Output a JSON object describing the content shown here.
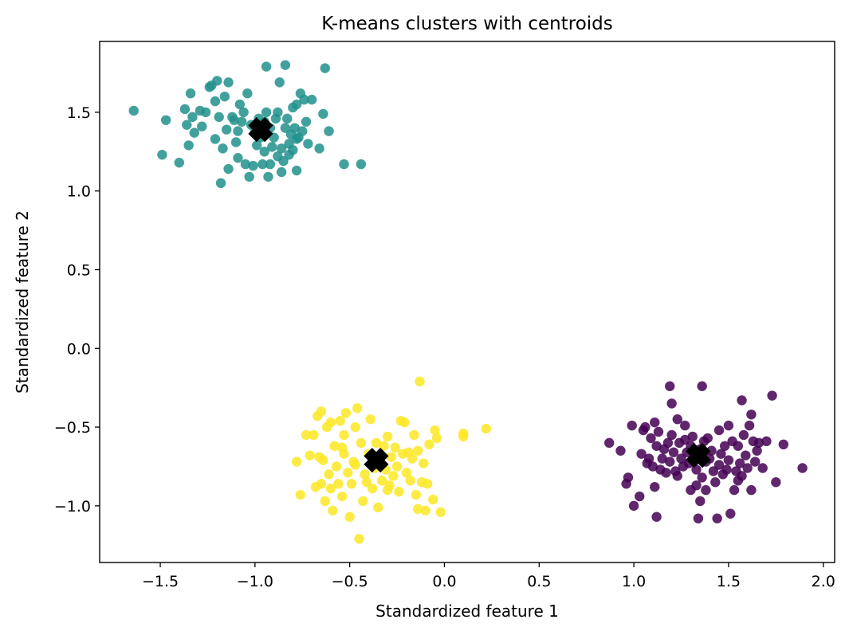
{
  "chart_data": {
    "type": "scatter",
    "title": "K-means clusters with centroids",
    "xlabel": "Standardized feature 1",
    "ylabel": "Standardized feature 2",
    "xlim": [
      -1.82,
      2.06
    ],
    "ylim": [
      -1.36,
      1.95
    ],
    "xticks": [
      -1.5,
      -1.0,
      -0.5,
      0.0,
      0.5,
      1.0,
      1.5,
      2.0
    ],
    "xtick_labels": [
      "−1.5",
      "−1.0",
      "−0.5",
      "0.0",
      "0.5",
      "1.0",
      "1.5",
      "2.0"
    ],
    "yticks": [
      -1.0,
      -0.5,
      0.0,
      0.5,
      1.0,
      1.5
    ],
    "ytick_labels": [
      "−1.0",
      "−0.5",
      "0.0",
      "0.5",
      "1.0",
      "1.5"
    ],
    "grid": false,
    "legend": "none",
    "point_alpha": 0.85,
    "clusters": [
      {
        "color": "#440154",
        "centroid": [
          1.34,
          -0.68
        ],
        "points": [
          [
            0.87,
            -0.6
          ],
          [
            0.93,
            -0.65
          ],
          [
            0.96,
            -0.86
          ],
          [
            0.97,
            -0.82
          ],
          [
            0.99,
            -0.49
          ],
          [
            1.0,
            -1.0
          ],
          [
            1.03,
            -0.94
          ],
          [
            1.04,
            -0.67
          ],
          [
            1.05,
            -0.52
          ],
          [
            1.06,
            -0.5
          ],
          [
            1.07,
            -0.73
          ],
          [
            1.08,
            -0.7
          ],
          [
            1.09,
            -0.57
          ],
          [
            1.1,
            -0.75
          ],
          [
            1.11,
            -0.88
          ],
          [
            1.11,
            -0.47
          ],
          [
            1.12,
            -1.07
          ],
          [
            1.12,
            -0.62
          ],
          [
            1.13,
            -0.53
          ],
          [
            1.14,
            -0.77
          ],
          [
            1.15,
            -0.7
          ],
          [
            1.16,
            -0.64
          ],
          [
            1.17,
            -0.79
          ],
          [
            1.18,
            -0.6
          ],
          [
            1.19,
            -0.72
          ],
          [
            1.19,
            -0.24
          ],
          [
            1.2,
            -0.35
          ],
          [
            1.2,
            -0.55
          ],
          [
            1.21,
            -0.66
          ],
          [
            1.22,
            -0.78
          ],
          [
            1.23,
            -0.81
          ],
          [
            1.23,
            -0.45
          ],
          [
            1.24,
            -0.6
          ],
          [
            1.25,
            -0.7
          ],
          [
            1.26,
            -0.75
          ],
          [
            1.27,
            -0.58
          ],
          [
            1.28,
            -0.66
          ],
          [
            1.29,
            -0.73
          ],
          [
            1.3,
            -0.9
          ],
          [
            1.3,
            -0.62
          ],
          [
            1.31,
            -0.56
          ],
          [
            1.32,
            -0.68
          ],
          [
            1.33,
            -0.77
          ],
          [
            1.33,
            -0.87
          ],
          [
            1.34,
            -1.08
          ],
          [
            1.35,
            -0.64
          ],
          [
            1.35,
            -0.97
          ],
          [
            1.36,
            -0.24
          ],
          [
            1.36,
            -0.82
          ],
          [
            1.37,
            -0.59
          ],
          [
            1.38,
            -0.72
          ],
          [
            1.38,
            -0.9
          ],
          [
            1.39,
            -0.57
          ],
          [
            1.4,
            -0.7
          ],
          [
            1.41,
            -0.65
          ],
          [
            1.42,
            -0.78
          ],
          [
            1.43,
            -0.85
          ],
          [
            1.44,
            -1.08
          ],
          [
            1.45,
            -0.74
          ],
          [
            1.46,
            -0.67
          ],
          [
            1.47,
            -0.8
          ],
          [
            1.48,
            -0.62
          ],
          [
            1.49,
            -0.77
          ],
          [
            1.5,
            -0.49
          ],
          [
            1.5,
            -0.71
          ],
          [
            1.51,
            -1.05
          ],
          [
            1.52,
            -0.59
          ],
          [
            1.53,
            -0.9
          ],
          [
            1.54,
            -0.78
          ],
          [
            1.55,
            -0.62
          ],
          [
            1.56,
            -0.73
          ],
          [
            1.57,
            -0.81
          ],
          [
            1.57,
            -0.33
          ],
          [
            1.58,
            -0.55
          ],
          [
            1.59,
            -0.68
          ],
          [
            1.6,
            -0.76
          ],
          [
            1.61,
            -0.49
          ],
          [
            1.62,
            -0.42
          ],
          [
            1.62,
            -0.9
          ],
          [
            1.63,
            -0.59
          ],
          [
            1.64,
            -0.72
          ],
          [
            1.65,
            -0.65
          ],
          [
            1.66,
            -0.6
          ],
          [
            1.68,
            -0.76
          ],
          [
            1.7,
            -0.59
          ],
          [
            1.73,
            -0.3
          ],
          [
            1.75,
            -0.85
          ],
          [
            1.79,
            -0.61
          ],
          [
            1.89,
            -0.76
          ],
          [
            1.55,
            -0.84
          ],
          [
            1.45,
            -0.52
          ],
          [
            1.27,
            -0.49
          ]
        ]
      },
      {
        "color": "#21918c",
        "centroid": [
          -0.97,
          1.39
        ],
        "points": [
          [
            -1.64,
            1.51
          ],
          [
            -1.49,
            1.23
          ],
          [
            -1.47,
            1.45
          ],
          [
            -1.4,
            1.18
          ],
          [
            -1.37,
            1.52
          ],
          [
            -1.36,
            1.42
          ],
          [
            -1.35,
            1.29
          ],
          [
            -1.34,
            1.62
          ],
          [
            -1.33,
            1.47
          ],
          [
            -1.32,
            1.37
          ],
          [
            -1.29,
            1.51
          ],
          [
            -1.28,
            1.41
          ],
          [
            -1.26,
            1.5
          ],
          [
            -1.24,
            1.66
          ],
          [
            -1.23,
            1.67
          ],
          [
            -1.21,
            1.33
          ],
          [
            -1.21,
            1.57
          ],
          [
            -1.2,
            1.7
          ],
          [
            -1.19,
            1.47
          ],
          [
            -1.18,
            1.05
          ],
          [
            -1.17,
            1.27
          ],
          [
            -1.16,
            1.6
          ],
          [
            -1.15,
            1.39
          ],
          [
            -1.14,
            1.69
          ],
          [
            -1.14,
            1.14
          ],
          [
            -1.12,
            1.47
          ],
          [
            -1.11,
            1.45
          ],
          [
            -1.1,
            1.31
          ],
          [
            -1.09,
            1.21
          ],
          [
            -1.08,
            1.55
          ],
          [
            -1.07,
            1.44
          ],
          [
            -1.06,
            1.5
          ],
          [
            -1.05,
            1.17
          ],
          [
            -1.04,
            1.62
          ],
          [
            -1.03,
            1.09
          ],
          [
            -1.02,
            1.42
          ],
          [
            -1.01,
            1.16
          ],
          [
            -1.0,
            1.38
          ],
          [
            -0.99,
            1.29
          ],
          [
            -0.98,
            1.46
          ],
          [
            -0.97,
            1.34
          ],
          [
            -0.96,
            1.17
          ],
          [
            -0.95,
            1.25
          ],
          [
            -0.94,
            1.5
          ],
          [
            -0.94,
            1.79
          ],
          [
            -0.93,
            1.09
          ],
          [
            -0.92,
            1.4
          ],
          [
            -0.91,
            1.28
          ],
          [
            -0.9,
            1.34
          ],
          [
            -0.89,
            1.46
          ],
          [
            -0.88,
            1.22
          ],
          [
            -0.88,
            1.5
          ],
          [
            -0.87,
            1.69
          ],
          [
            -0.86,
            1.27
          ],
          [
            -0.85,
            1.19
          ],
          [
            -0.84,
            1.4
          ],
          [
            -0.84,
            1.8
          ],
          [
            -0.83,
            1.46
          ],
          [
            -0.82,
            1.23
          ],
          [
            -0.81,
            1.36
          ],
          [
            -0.8,
            1.53
          ],
          [
            -0.8,
            1.26
          ],
          [
            -0.79,
            1.4
          ],
          [
            -0.78,
            1.13
          ],
          [
            -0.78,
            1.55
          ],
          [
            -0.77,
            1.34
          ],
          [
            -0.76,
            1.62
          ],
          [
            -0.75,
            1.38
          ],
          [
            -0.74,
            1.58
          ],
          [
            -0.73,
            1.44
          ],
          [
            -0.72,
            1.3
          ],
          [
            -0.7,
            1.58
          ],
          [
            -0.66,
            1.27
          ],
          [
            -0.64,
            1.49
          ],
          [
            -0.63,
            1.78
          ],
          [
            -0.61,
            1.38
          ],
          [
            -0.53,
            1.17
          ],
          [
            -0.44,
            1.17
          ],
          [
            -0.92,
            1.17
          ],
          [
            -0.86,
            1.12
          ],
          [
            -1.09,
            1.38
          ],
          [
            -0.95,
            1.44
          ],
          [
            -0.82,
            1.3
          ],
          [
            -0.78,
            1.33
          ]
        ]
      },
      {
        "color": "#fde725",
        "centroid": [
          -0.36,
          -0.71
        ],
        "points": [
          [
            -0.78,
            -0.72
          ],
          [
            -0.76,
            -0.93
          ],
          [
            -0.73,
            -0.55
          ],
          [
            -0.71,
            -0.68
          ],
          [
            -0.69,
            -0.55
          ],
          [
            -0.68,
            -0.88
          ],
          [
            -0.67,
            -0.43
          ],
          [
            -0.66,
            -0.69
          ],
          [
            -0.65,
            -0.4
          ],
          [
            -0.65,
            -0.86
          ],
          [
            -0.64,
            -0.71
          ],
          [
            -0.63,
            -0.97
          ],
          [
            -0.62,
            -0.5
          ],
          [
            -0.61,
            -0.8
          ],
          [
            -0.6,
            -0.89
          ],
          [
            -0.6,
            -0.47
          ],
          [
            -0.59,
            -1.03
          ],
          [
            -0.58,
            -0.62
          ],
          [
            -0.57,
            -0.75
          ],
          [
            -0.56,
            -0.86
          ],
          [
            -0.55,
            -0.46
          ],
          [
            -0.54,
            -0.94
          ],
          [
            -0.53,
            -0.55
          ],
          [
            -0.53,
            -0.67
          ],
          [
            -0.52,
            -0.41
          ],
          [
            -0.51,
            -0.79
          ],
          [
            -0.5,
            -1.07
          ],
          [
            -0.49,
            -0.86
          ],
          [
            -0.48,
            -0.72
          ],
          [
            -0.47,
            -0.5
          ],
          [
            -0.46,
            -0.38
          ],
          [
            -0.45,
            -1.21
          ],
          [
            -0.44,
            -0.6
          ],
          [
            -0.43,
            -0.97
          ],
          [
            -0.42,
            -0.8
          ],
          [
            -0.41,
            -0.85
          ],
          [
            -0.4,
            -0.67
          ],
          [
            -0.39,
            -0.45
          ],
          [
            -0.38,
            -0.89
          ],
          [
            -0.37,
            -0.76
          ],
          [
            -0.36,
            -0.6
          ],
          [
            -0.35,
            -1.01
          ],
          [
            -0.34,
            -0.71
          ],
          [
            -0.33,
            -0.84
          ],
          [
            -0.32,
            -0.62
          ],
          [
            -0.31,
            -0.77
          ],
          [
            -0.3,
            -0.56
          ],
          [
            -0.29,
            -0.87
          ],
          [
            -0.28,
            -0.69
          ],
          [
            -0.27,
            -0.81
          ],
          [
            -0.26,
            -0.63
          ],
          [
            -0.25,
            -0.75
          ],
          [
            -0.24,
            -0.91
          ],
          [
            -0.23,
            -0.46
          ],
          [
            -0.22,
            -0.67
          ],
          [
            -0.21,
            -0.47
          ],
          [
            -0.2,
            -0.79
          ],
          [
            -0.19,
            -0.66
          ],
          [
            -0.18,
            -0.84
          ],
          [
            -0.17,
            -0.7
          ],
          [
            -0.16,
            -0.55
          ],
          [
            -0.15,
            -0.93
          ],
          [
            -0.14,
            -0.65
          ],
          [
            -0.14,
            -1.02
          ],
          [
            -0.13,
            -0.21
          ],
          [
            -0.12,
            -0.85
          ],
          [
            -0.11,
            -0.73
          ],
          [
            -0.1,
            -1.03
          ],
          [
            -0.09,
            -0.86
          ],
          [
            -0.08,
            -0.61
          ],
          [
            -0.06,
            -0.96
          ],
          [
            -0.05,
            -0.52
          ],
          [
            -0.04,
            -0.57
          ],
          [
            -0.02,
            -1.04
          ],
          [
            0.1,
            -0.54
          ],
          [
            0.1,
            -0.56
          ],
          [
            0.22,
            -0.51
          ],
          [
            -0.3,
            -0.9
          ],
          [
            -0.54,
            -0.63
          ],
          [
            -0.47,
            -0.74
          ]
        ]
      }
    ],
    "centroid_marker": "X",
    "centroid_color": "#000000"
  }
}
